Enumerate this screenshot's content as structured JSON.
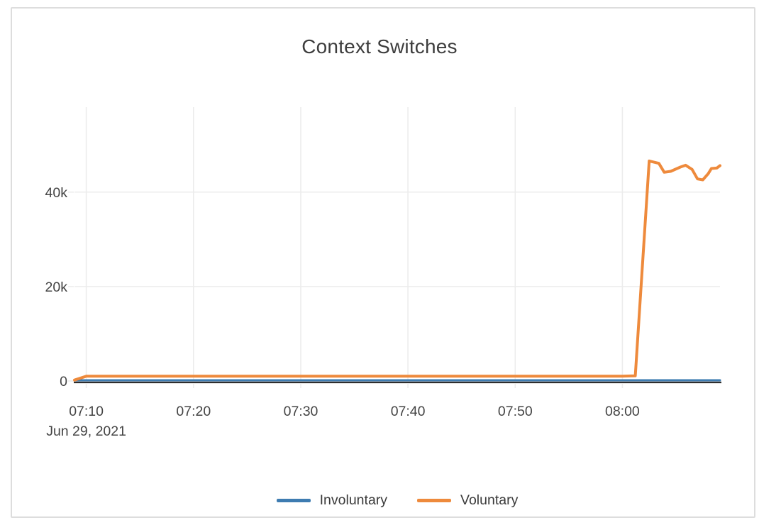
{
  "chart_data": {
    "type": "line",
    "title": "Context Switches",
    "date_label": "Jun 29, 2021",
    "x_format": "minutes after 07:00 on Jun 29, 2021",
    "xlim": [
      8.9,
      69.1
    ],
    "ylim": [
      0,
      58000
    ],
    "grid": true,
    "legend_position": "bottom-center",
    "x_ticks": [
      {
        "m": 10,
        "label": "07:10"
      },
      {
        "m": 20,
        "label": "07:20"
      },
      {
        "m": 30,
        "label": "07:30"
      },
      {
        "m": 40,
        "label": "07:40"
      },
      {
        "m": 50,
        "label": "07:50"
      },
      {
        "m": 60,
        "label": "08:00"
      }
    ],
    "y_ticks": [
      {
        "v": 0,
        "label": "0"
      },
      {
        "v": 20000,
        "label": "20k"
      },
      {
        "v": 40000,
        "label": "40k"
      }
    ],
    "colors": {
      "grid": "#ececec",
      "zero_axis": "#2d2d2d",
      "tick_text": "#444444",
      "title_text": "#3d3d3d"
    },
    "series": [
      {
        "name": "Involuntary",
        "color": "#3e7cb1",
        "points": [
          [
            8.9,
            150
          ],
          [
            15,
            150
          ],
          [
            20,
            150
          ],
          [
            25,
            150
          ],
          [
            30,
            150
          ],
          [
            35,
            150
          ],
          [
            40,
            150
          ],
          [
            45,
            150
          ],
          [
            50,
            150
          ],
          [
            55,
            150
          ],
          [
            60,
            150
          ],
          [
            65,
            150
          ],
          [
            69.1,
            150
          ]
        ]
      },
      {
        "name": "Voluntary",
        "color": "#ee8a3c",
        "points": [
          [
            8.9,
            200
          ],
          [
            10,
            1000
          ],
          [
            15,
            1000
          ],
          [
            20,
            1000
          ],
          [
            25,
            1000
          ],
          [
            30,
            1000
          ],
          [
            35,
            1000
          ],
          [
            40,
            1000
          ],
          [
            45,
            1000
          ],
          [
            50,
            1000
          ],
          [
            55,
            1000
          ],
          [
            60,
            1000
          ],
          [
            61.2,
            1100
          ],
          [
            62.5,
            46600
          ],
          [
            63.4,
            46100
          ],
          [
            63.9,
            44200
          ],
          [
            64.5,
            44400
          ],
          [
            65.4,
            45300
          ],
          [
            65.9,
            45700
          ],
          [
            66.5,
            44800
          ],
          [
            67.0,
            42800
          ],
          [
            67.5,
            42600
          ],
          [
            68.0,
            43900
          ],
          [
            68.3,
            45000
          ],
          [
            68.8,
            45100
          ],
          [
            69.1,
            45600
          ]
        ]
      }
    ]
  }
}
